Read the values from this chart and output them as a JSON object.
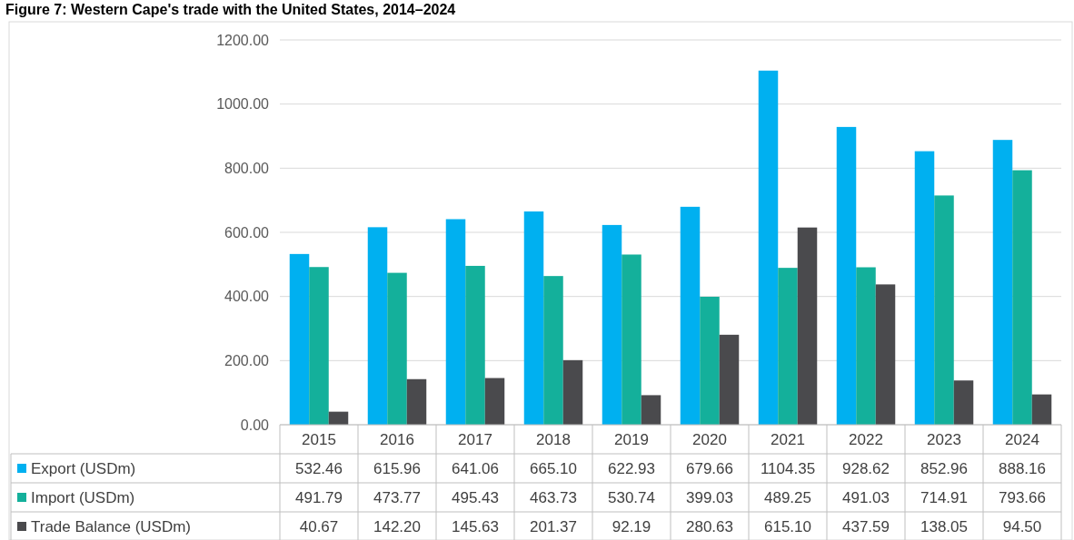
{
  "chart_data": {
    "type": "bar",
    "title": "Figure 7: Western Cape's trade with the United States, 2014–2024",
    "categories": [
      "2015",
      "2016",
      "2017",
      "2018",
      "2019",
      "2020",
      "2021",
      "2022",
      "2023",
      "2024"
    ],
    "series": [
      {
        "name": "Export (USDm)",
        "color": "#00b0f0",
        "values": [
          532.46,
          615.96,
          641.06,
          665.1,
          622.93,
          679.66,
          1104.35,
          928.62,
          852.96,
          888.16
        ],
        "value_labels": [
          "532.46",
          "615.96",
          "641.06",
          "665.10",
          "622.93",
          "679.66",
          "1104.35",
          "928.62",
          "852.96",
          "888.16"
        ]
      },
      {
        "name": "Import (USDm)",
        "color": "#14b09b",
        "values": [
          491.79,
          473.77,
          495.43,
          463.73,
          530.74,
          399.03,
          489.25,
          491.03,
          714.91,
          793.66
        ],
        "value_labels": [
          "491.79",
          "473.77",
          "495.43",
          "463.73",
          "530.74",
          "399.03",
          "489.25",
          "491.03",
          "714.91",
          "793.66"
        ]
      },
      {
        "name": "Trade Balance (USDm)",
        "color": "#4a4a4d",
        "values": [
          40.67,
          142.2,
          145.63,
          201.37,
          92.19,
          280.63,
          615.1,
          437.59,
          138.05,
          94.5
        ],
        "value_labels": [
          "40.67",
          "142.20",
          "145.63",
          "201.37",
          "92.19",
          "280.63",
          "615.10",
          "437.59",
          "138.05",
          "94.50"
        ]
      }
    ],
    "ylim": [
      0,
      1200
    ],
    "yticks": [
      {
        "value": 0,
        "label": "0.00"
      },
      {
        "value": 200,
        "label": "200.00"
      },
      {
        "value": 400,
        "label": "400.00"
      },
      {
        "value": 600,
        "label": "600.00"
      },
      {
        "value": 800,
        "label": "800.00"
      },
      {
        "value": 1000,
        "label": "1000.00"
      },
      {
        "value": 1200,
        "label": "1200.00"
      }
    ],
    "grid": "y",
    "legend": "bottom"
  }
}
